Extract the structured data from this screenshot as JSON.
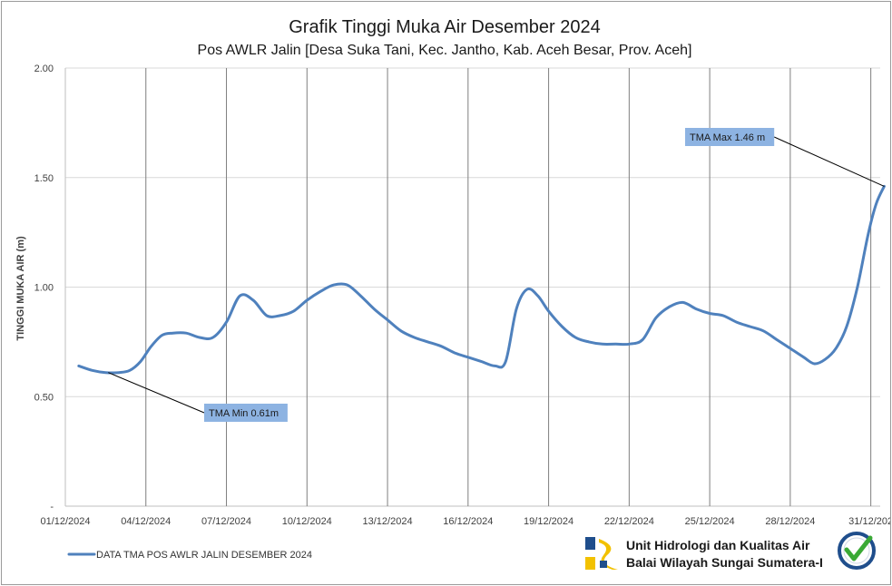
{
  "colors": {
    "series": "#4f81bd",
    "annotation_fill": "#8db3e2",
    "grid_h": "#d9d9d9",
    "grid_v": "#7f7f7f",
    "logo_blue": "#1f4e8c",
    "logo_yellow": "#f2c100",
    "badge_blue": "#1f4e8c",
    "badge_green": "#3aa935"
  },
  "chart_data": {
    "type": "line",
    "title": "Grafik Tinggi Muka Air Desember 2024",
    "subtitle": "Pos AWLR Jalin [Desa Suka Tani, Kec. Jantho, Kab. Aceh Besar, Prov. Aceh]",
    "ylabel": "TINGGI MUKA AIR (m)",
    "xlabel": "",
    "ylim": [
      0,
      2.0
    ],
    "xlim": [
      0,
      30.35
    ],
    "y_ticks": [
      {
        "value": 0,
        "label": "-"
      },
      {
        "value": 0.5,
        "label": "0.50"
      },
      {
        "value": 1.0,
        "label": "1.00"
      },
      {
        "value": 1.5,
        "label": "1.50"
      },
      {
        "value": 2.0,
        "label": "2.00"
      }
    ],
    "x_ticks": [
      {
        "day": 0,
        "label": "01/12/2024"
      },
      {
        "day": 3,
        "label": "04/12/2024"
      },
      {
        "day": 6,
        "label": "07/12/2024"
      },
      {
        "day": 9,
        "label": "10/12/2024"
      },
      {
        "day": 12,
        "label": "13/12/2024"
      },
      {
        "day": 15,
        "label": "16/12/2024"
      },
      {
        "day": 18,
        "label": "19/12/2024"
      },
      {
        "day": 21,
        "label": "22/12/2024"
      },
      {
        "day": 24,
        "label": "25/12/2024"
      },
      {
        "day": 27,
        "label": "28/12/2024"
      },
      {
        "day": 30,
        "label": "31/12/202"
      }
    ],
    "grid": {
      "horizontal": true,
      "vertical": true
    },
    "legend_position": "bottom-left",
    "series": [
      {
        "name": "DATA TMA POS AWLR JALIN DESEMBER 2024",
        "x": [
          0.5,
          1.0,
          1.5,
          2.0,
          2.4,
          2.8,
          3.2,
          3.6,
          4.0,
          4.5,
          5.0,
          5.5,
          6.0,
          6.5,
          7.0,
          7.5,
          8.0,
          8.5,
          9.0,
          9.5,
          10.0,
          10.5,
          11.0,
          11.5,
          12.0,
          12.5,
          13.0,
          13.5,
          14.0,
          14.5,
          15.0,
          15.5,
          16.0,
          16.4,
          16.8,
          17.2,
          17.6,
          18.0,
          18.5,
          19.0,
          19.5,
          20.0,
          20.5,
          21.0,
          21.5,
          22.0,
          22.5,
          23.0,
          23.5,
          24.0,
          24.5,
          25.0,
          25.5,
          26.0,
          26.5,
          27.0,
          27.5,
          27.9,
          28.3,
          28.7,
          29.1,
          29.5,
          29.9,
          30.2,
          30.5
        ],
        "y": [
          0.64,
          0.62,
          0.61,
          0.61,
          0.62,
          0.66,
          0.73,
          0.78,
          0.79,
          0.79,
          0.77,
          0.77,
          0.84,
          0.96,
          0.94,
          0.87,
          0.87,
          0.89,
          0.94,
          0.98,
          1.01,
          1.01,
          0.96,
          0.9,
          0.85,
          0.8,
          0.77,
          0.75,
          0.73,
          0.7,
          0.68,
          0.66,
          0.64,
          0.66,
          0.9,
          0.99,
          0.96,
          0.89,
          0.82,
          0.77,
          0.75,
          0.74,
          0.74,
          0.74,
          0.76,
          0.86,
          0.91,
          0.93,
          0.9,
          0.88,
          0.87,
          0.84,
          0.82,
          0.8,
          0.76,
          0.72,
          0.68,
          0.65,
          0.67,
          0.72,
          0.82,
          1.0,
          1.24,
          1.38,
          1.46
        ]
      }
    ],
    "annotations": [
      {
        "label": "TMA Min 0.61m",
        "point_x": 1.6,
        "point_y": 0.61,
        "box_anchor": "bottom-right"
      },
      {
        "label": "TMA Max 1.46 m",
        "point_x": 30.5,
        "point_y": 1.46,
        "box_anchor": "top-left"
      }
    ]
  },
  "footer": {
    "org_line1": "Unit Hidrologi dan Kualitas Air",
    "org_line2": "Balai Wilayah Sungai Sumatera-I",
    "badge_icon": "certified-checkmark-icon",
    "logo_icon": "pupr-logo-icon"
  }
}
